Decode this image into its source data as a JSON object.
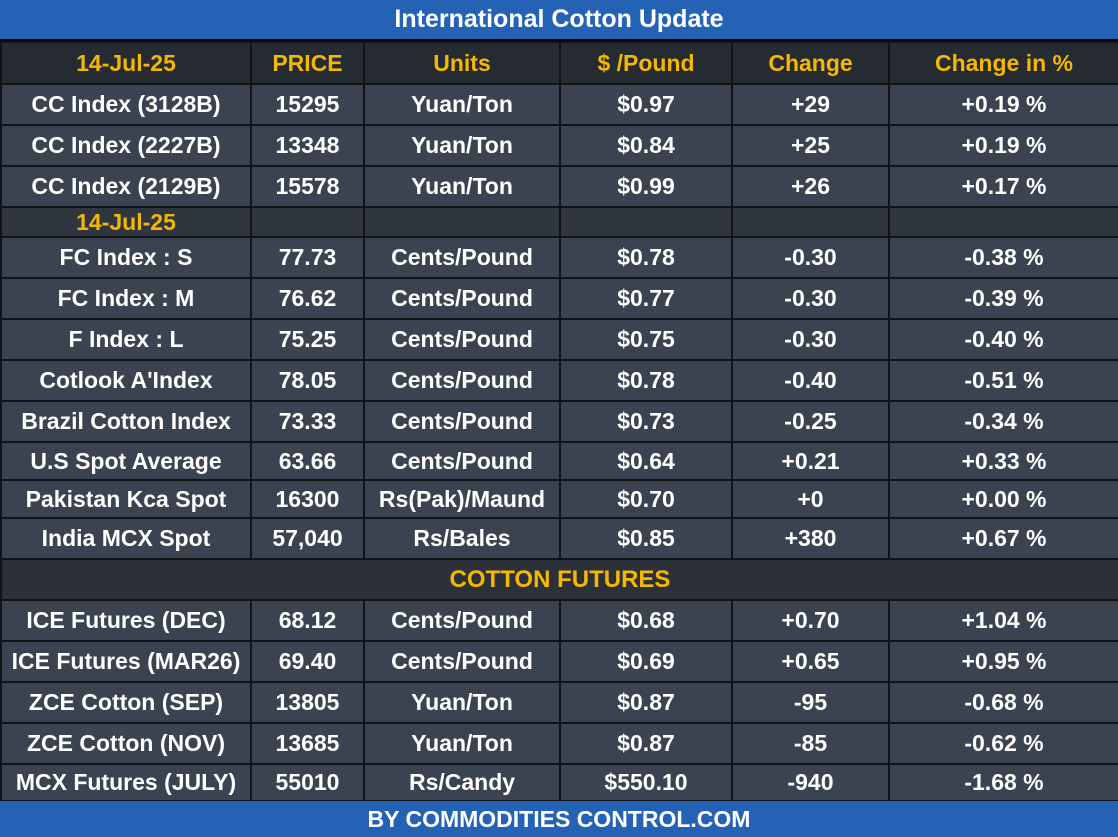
{
  "title": "International Cotton Update",
  "footer": "BY  COMMODITIES CONTROL.COM",
  "header": [
    "14-Jul-25",
    "PRICE",
    "Units",
    "$ /Pound",
    "Change",
    "Change in %"
  ],
  "cc_rows": [
    [
      "CC Index (3128B)",
      "15295",
      "Yuan/Ton",
      "$0.97",
      "+29",
      "+0.19 %"
    ],
    [
      "CC Index (2227B)",
      "13348",
      "Yuan/Ton",
      "$0.84",
      "+25",
      "+0.19 %"
    ],
    [
      "CC Index (2129B)",
      "15578",
      "Yuan/Ton",
      "$0.99",
      "+26",
      "+0.17 %"
    ]
  ],
  "date_label": "14-Jul-25",
  "spot_rows": [
    [
      "FC Index : S",
      "77.73",
      "Cents/Pound",
      "$0.78",
      "-0.30",
      "-0.38 %"
    ],
    [
      "FC Index : M",
      "76.62",
      "Cents/Pound",
      "$0.77",
      "-0.30",
      "-0.39 %"
    ],
    [
      "F Index : L",
      "75.25",
      "Cents/Pound",
      "$0.75",
      "-0.30",
      "-0.40 %"
    ],
    [
      "Cotlook A'Index",
      "78.05",
      "Cents/Pound",
      "$0.78",
      "-0.40",
      "-0.51 %"
    ],
    [
      "Brazil Cotton Index",
      "73.33",
      "Cents/Pound",
      "$0.73",
      "-0.25",
      "-0.34 %"
    ],
    [
      "U.S Spot Average",
      "63.66",
      "Cents/Pound",
      "$0.64",
      "+0.21",
      "+0.33 %"
    ],
    [
      "Pakistan Kca Spot",
      "16300",
      "Rs(Pak)/Maund",
      "$0.70",
      "+0",
      "+0.00 %"
    ],
    [
      "India MCX Spot",
      "57,040",
      "Rs/Bales",
      "$0.85",
      "+380",
      "+0.67 %"
    ]
  ],
  "futures_title": "COTTON FUTURES",
  "futures_rows": [
    [
      "ICE Futures (DEC)",
      "68.12",
      "Cents/Pound",
      "$0.68",
      "+0.70",
      "+1.04 %"
    ],
    [
      "ICE Futures (MAR26)",
      "69.40",
      "Cents/Pound",
      "$0.69",
      "+0.65",
      "+0.95 %"
    ],
    [
      "ZCE Cotton (SEP)",
      "13805",
      "Yuan/Ton",
      "$0.87",
      "-95",
      "-0.68 %"
    ],
    [
      "ZCE Cotton (NOV)",
      "13685",
      "Yuan/Ton",
      "$0.87",
      "-85",
      "-0.62 %"
    ],
    [
      "MCX Futures (JULY)",
      "55010",
      "Rs/Candy",
      "$550.10",
      "-940",
      "-1.68 %"
    ]
  ]
}
